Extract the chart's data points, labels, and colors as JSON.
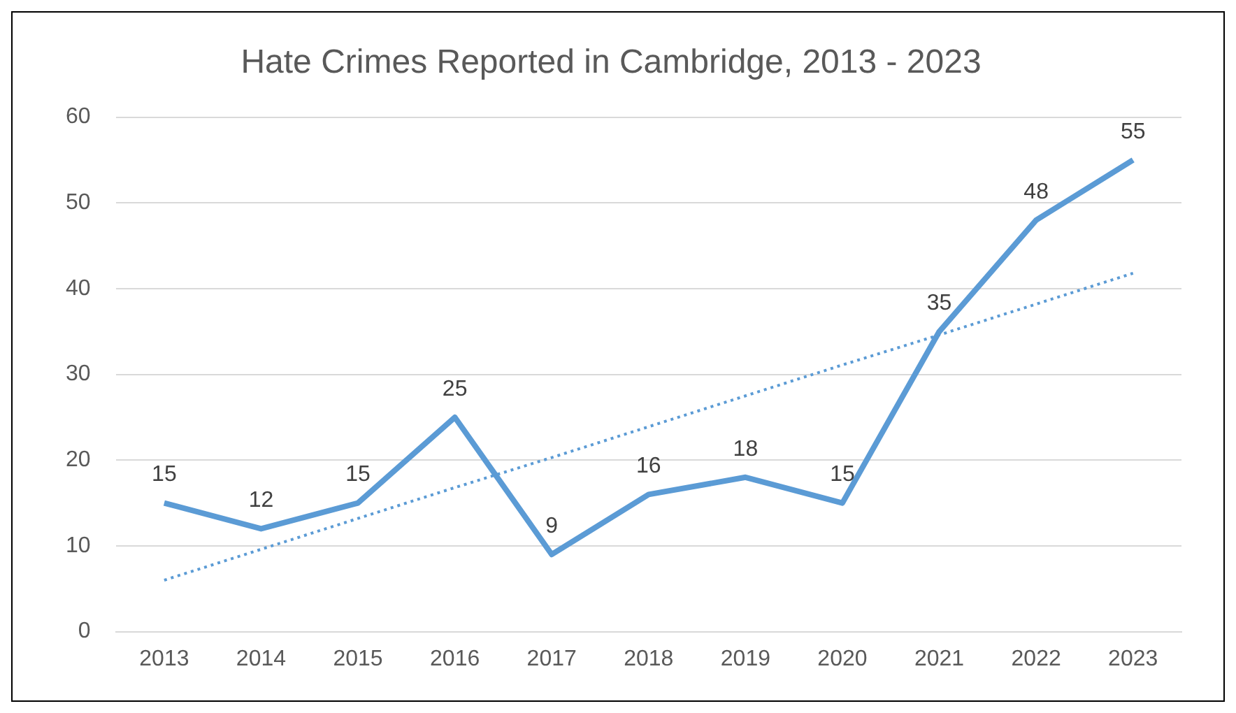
{
  "chart_data": {
    "type": "line",
    "title": "Hate Crimes Reported in Cambridge, 2013 - 2023",
    "categories": [
      "2013",
      "2014",
      "2015",
      "2016",
      "2017",
      "2018",
      "2019",
      "2020",
      "2021",
      "2022",
      "2023"
    ],
    "series": [
      {
        "color": "#5b9bd5",
        "values": [
          15,
          12,
          15,
          25,
          9,
          16,
          18,
          15,
          35,
          48,
          55
        ],
        "value_labels": [
          "15",
          "12",
          "15",
          "25",
          "9",
          "16",
          "18",
          "15",
          "35",
          "48",
          "55"
        ],
        "line_style": "solid"
      },
      {
        "type": "line",
        "color": "#5b9bd5",
        "values": [
          6.0,
          9.6,
          13.2,
          16.8,
          20.3,
          23.9,
          27.5,
          31.1,
          34.6,
          38.2,
          41.8
        ],
        "line_style": "dotted"
      }
    ],
    "ylim": [
      0,
      60
    ],
    "yticks": [
      0,
      10,
      20,
      30,
      40,
      50,
      60
    ],
    "grid": "y",
    "legend": false,
    "marker": "none"
  }
}
